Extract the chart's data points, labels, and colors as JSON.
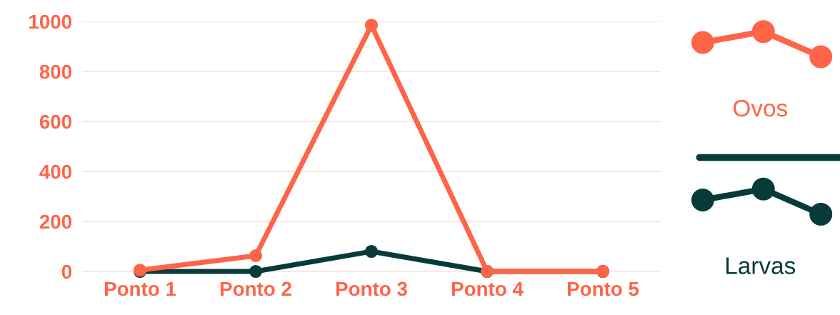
{
  "chart_data": {
    "type": "line",
    "categories": [
      "Ponto 1",
      "Ponto 2",
      "Ponto 3",
      "Ponto 4",
      "Ponto 5"
    ],
    "series": [
      {
        "name": "Ovos",
        "color": "#fe6447",
        "values": [
          5,
          63,
          985,
          0,
          0
        ]
      },
      {
        "name": "Larvas",
        "color": "#073b3a",
        "values": [
          0,
          0,
          80,
          0,
          0
        ]
      }
    ],
    "ylim": [
      0,
      1000
    ],
    "yticks": [
      0,
      200,
      400,
      600,
      800,
      1000
    ],
    "grid": "y",
    "marker": "circle",
    "line_style": "solid",
    "legend": "right"
  }
}
